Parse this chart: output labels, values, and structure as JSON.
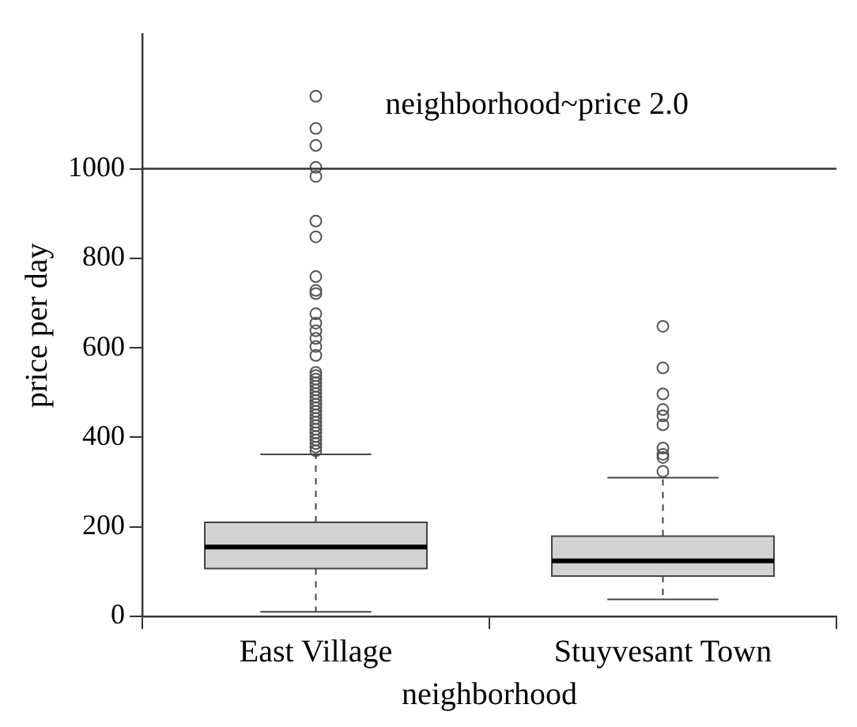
{
  "chart_data": {
    "type": "box",
    "title": "neighborhood~price 2.0",
    "xlabel": "neighborhood",
    "ylabel": "price per day",
    "categories": [
      "East Village",
      "Stuyvesant Town"
    ],
    "boxes": [
      {
        "low": 10,
        "q1": 107,
        "median": 155,
        "q3": 210,
        "high": 362,
        "outliers": [
          1162,
          1090,
          1052,
          1003,
          983,
          883,
          848,
          759,
          728,
          721,
          676,
          655,
          638,
          621,
          603,
          583,
          545,
          538,
          530,
          522,
          514,
          506,
          498,
          490,
          482,
          474,
          466,
          458,
          450,
          442,
          434,
          426,
          418,
          410,
          402,
          394,
          386,
          378,
          370
        ]
      },
      {
        "low": 38,
        "q1": 90,
        "median": 124,
        "q3": 179,
        "high": 310,
        "outliers": [
          648,
          555,
          497,
          462,
          448,
          428,
          376,
          362,
          355,
          324
        ]
      }
    ],
    "color": "#d3d3d3",
    "ylim": [
      0,
      1300
    ],
    "yticks": [
      0,
      200,
      400,
      600,
      800,
      1000
    ],
    "ref_lines": [
      {
        "axis": "y",
        "value": 1000,
        "color": "#333333"
      }
    ],
    "grid": false,
    "legend": false
  }
}
